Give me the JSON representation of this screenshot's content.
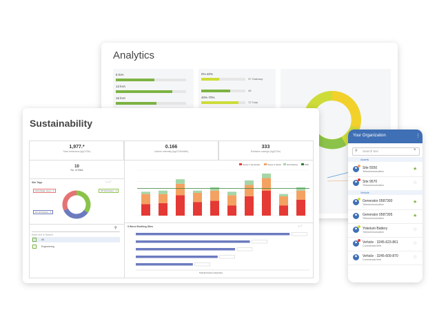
{
  "analytics": {
    "title": "Analytics",
    "left_bars": [
      {
        "label": "8 kVA",
        "pct": 0.55
      },
      {
        "label": "13 kVA",
        "pct": 0.8
      },
      {
        "label": "15 kVA",
        "pct": 0.58
      }
    ],
    "right_bars": [
      {
        "heading": "0%-40%",
        "pct": 0.4,
        "value": "37 Gateway"
      },
      {
        "heading": "",
        "pct": 0.65,
        "value": "48"
      },
      {
        "heading": "40%-70%",
        "pct": 0.85,
        "value": "72 Total"
      }
    ],
    "colors": {
      "green": "#7cb342",
      "yellow": "#cddc39"
    }
  },
  "sustainability": {
    "title": "Sustainability",
    "kpis": [
      {
        "value": "1,977.*",
        "label": "Total emissions (kgCO2e)"
      },
      {
        "value": "0.166",
        "label": "Carbon intensity (kgCO2e/kWh)"
      },
      {
        "value": "333",
        "label": "Emission savings (kgCO2e)"
      }
    ],
    "sites": {
      "value": "10",
      "label": "No. of Sites"
    },
    "site_tags": {
      "title": "Site Tags",
      "labels": [
        "Grid (Solar, Gen) - 3",
        "Off Grid (Gen) - 3",
        "On Grid (Gen) - 3"
      ]
    },
    "search": {
      "placeholder": "Enter text to Search"
    },
    "tag_list": [
      "All",
      "Engineering"
    ],
    "stacked_legend": [
      "Scope 1 Generator",
      "Scope 2 (Grid)",
      "Grid Saving",
      "PFE"
    ],
    "ranked_title": "5 Worst Emitting Sites",
    "ranked_xlabel": "Total Emissions (kgCo2e)",
    "chart_colors": {
      "scope1": "#e53935",
      "scope2": "#f4a261",
      "saving": "#a5d6a7",
      "target": "#2e7d32",
      "rank": "#6c7bbf",
      "donut_red": "#e57373",
      "donut_green": "#8bc34a",
      "donut_blue": "#6c7bbf"
    }
  },
  "chart_data": [
    {
      "type": "bar",
      "categories": [
        "",
        "",
        "",
        "",
        "",
        "",
        "",
        "",
        "",
        ""
      ],
      "series": [
        {
          "name": "Scope 1 Generator",
          "values": [
            10,
            11,
            18,
            12,
            13,
            9,
            17,
            22,
            9,
            14
          ]
        },
        {
          "name": "Scope 2 (Grid)",
          "values": [
            9,
            8,
            10,
            8,
            9,
            9,
            10,
            11,
            8,
            8
          ]
        },
        {
          "name": "Grid Saving",
          "values": [
            2,
            3,
            4,
            2,
            3,
            3,
            4,
            4,
            2,
            3
          ]
        }
      ],
      "ylim": [
        0,
        40
      ],
      "target": 24
    },
    {
      "type": "bar",
      "orientation": "horizontal",
      "categories": [
        "",
        "",
        "",
        "",
        ""
      ],
      "values": [
        3100,
        2300,
        2000,
        1650,
        1150
      ],
      "xlim": [
        0,
        3500
      ]
    },
    {
      "type": "pie",
      "values": [
        35,
        33,
        32
      ]
    }
  ],
  "phone": {
    "title": "Your Organization",
    "search_placeholder": "Search text",
    "sections": [
      {
        "label": "Assets"
      },
      {
        "label": "Vehicle"
      }
    ],
    "items": [
      {
        "name": "Site 5550",
        "sub": "Telecommunication",
        "dot": "#f4a261",
        "starred": true
      },
      {
        "name": "Site 9570",
        "sub": "Telecommunication",
        "dot": "#e53935",
        "starred": false
      },
      {
        "name": "Generator 0587300",
        "sub": "Telecommunication",
        "dot": "#cddc39",
        "starred": true
      },
      {
        "name": "Generator 0587305",
        "sub": "Telecommunication",
        "dot": "",
        "starred": true
      },
      {
        "name": "Yokelum Battery",
        "sub": "Telecommunication",
        "dot": "#cddc39",
        "starred": false
      },
      {
        "name": "Vehicle · 3245-623-861",
        "sub": "Commercial fleet",
        "dot": "#e53935",
        "starred": false
      },
      {
        "name": "Vehicle · 3245-609-870",
        "sub": "Commercial fleet",
        "dot": "",
        "starred": false
      }
    ]
  }
}
